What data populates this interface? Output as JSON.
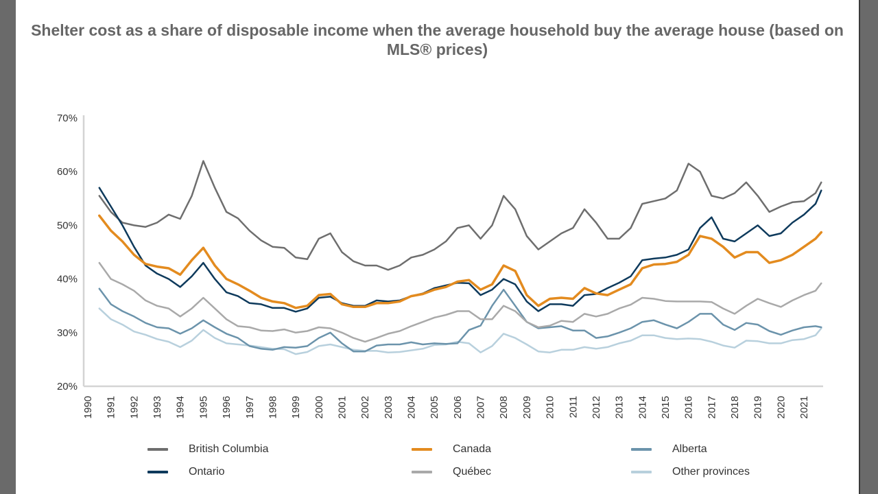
{
  "chart_data": {
    "type": "line",
    "title": "Shelter cost as a share of disposable income when the average household buy the average house (based on MLS® prices)",
    "xlabel": "",
    "ylabel": "",
    "ylim": [
      20,
      70
    ],
    "y_ticks": [
      "20%",
      "30%",
      "40%",
      "50%",
      "60%",
      "70%"
    ],
    "y_tick_values": [
      20,
      30,
      40,
      50,
      60,
      70
    ],
    "x_ticks": [
      "1990",
      "1991",
      "1992",
      "1993",
      "1994",
      "1995",
      "1996",
      "1997",
      "1998",
      "1999",
      "2000",
      "2001",
      "2002",
      "2003",
      "2004",
      "2005",
      "2006",
      "2007",
      "2008",
      "2009",
      "2010",
      "2011",
      "2012",
      "2013",
      "2014",
      "2015",
      "2016",
      "2017",
      "2018",
      "2019",
      "2020",
      "2021"
    ],
    "grid": false,
    "legend_position": "bottom",
    "x": [
      1990.5,
      1991,
      1991.5,
      1992,
      1992.5,
      1993,
      1993.5,
      1994,
      1994.5,
      1995,
      1995.5,
      1996,
      1996.5,
      1997,
      1997.5,
      1998,
      1998.5,
      1999,
      1999.5,
      2000,
      2000.5,
      2001,
      2001.5,
      2002,
      2002.5,
      2003,
      2003.5,
      2004,
      2004.5,
      2005,
      2005.5,
      2006,
      2006.5,
      2007,
      2007.5,
      2008,
      2008.5,
      2009,
      2009.5,
      2010,
      2010.5,
      2011,
      2011.5,
      2012,
      2012.5,
      2013,
      2013.5,
      2014,
      2014.5,
      2015,
      2015.5,
      2016,
      2016.5,
      2017,
      2017.5,
      2018,
      2018.5,
      2019,
      2019.5,
      2020,
      2020.5,
      2021,
      2021.5,
      2021.75
    ],
    "series": [
      {
        "name": "Other provinces",
        "color": "#b8d0dd",
        "width": 2.5,
        "values": [
          34.5,
          32.5,
          31.5,
          30.2,
          29.6,
          28.8,
          28.3,
          27.3,
          28.5,
          30.5,
          29.0,
          28.0,
          27.8,
          27.6,
          27.3,
          27.0,
          26.9,
          26.0,
          26.4,
          27.5,
          27.8,
          27.3,
          26.8,
          26.6,
          26.6,
          26.3,
          26.4,
          26.7,
          27.0,
          27.7,
          27.8,
          28.3,
          28.0,
          26.3,
          27.5,
          29.8,
          29.0,
          27.8,
          26.5,
          26.3,
          26.8,
          26.8,
          27.3,
          27.0,
          27.3,
          28.0,
          28.5,
          29.5,
          29.5,
          29.0,
          28.8,
          28.9,
          28.8,
          28.3,
          27.6,
          27.2,
          28.5,
          28.4,
          28.0,
          28.0,
          28.6,
          28.8,
          29.5,
          30.8
        ]
      },
      {
        "name": "Alberta",
        "color": "#6b93ab",
        "width": 2.5,
        "values": [
          38.2,
          35.3,
          34.0,
          33.0,
          31.8,
          31.0,
          30.8,
          29.8,
          30.8,
          32.3,
          31.0,
          29.8,
          29.0,
          27.5,
          27.0,
          26.8,
          27.3,
          27.2,
          27.5,
          29.0,
          30.0,
          28.0,
          26.5,
          26.5,
          27.6,
          27.8,
          27.8,
          28.2,
          27.8,
          28.0,
          27.9,
          28.0,
          30.5,
          31.3,
          35.0,
          38.0,
          35.0,
          32.0,
          30.8,
          31.0,
          31.2,
          30.4,
          30.4,
          29.0,
          29.3,
          30.0,
          30.8,
          32.0,
          32.3,
          31.5,
          30.8,
          32.0,
          33.5,
          33.5,
          31.5,
          30.5,
          31.8,
          31.5,
          30.3,
          29.6,
          30.4,
          31.0,
          31.2,
          31.0
        ]
      },
      {
        "name": "Québec",
        "color": "#a9a9a9",
        "width": 2.5,
        "values": [
          43.0,
          40.0,
          39.0,
          37.8,
          36.0,
          35.0,
          34.5,
          33.0,
          34.5,
          36.5,
          34.5,
          32.5,
          31.2,
          31.0,
          30.4,
          30.3,
          30.6,
          30.0,
          30.3,
          31.0,
          30.8,
          30.0,
          29.0,
          28.3,
          29.0,
          29.8,
          30.3,
          31.2,
          32.0,
          32.8,
          33.3,
          34.0,
          34.0,
          32.5,
          32.5,
          35.0,
          34.0,
          32.0,
          31.0,
          31.3,
          32.2,
          32.0,
          33.5,
          33.0,
          33.5,
          34.5,
          35.2,
          36.5,
          36.3,
          35.9,
          35.8,
          35.8,
          35.8,
          35.7,
          34.5,
          33.5,
          35.0,
          36.3,
          35.5,
          34.8,
          36.0,
          37.0,
          37.8,
          39.2
        ]
      },
      {
        "name": "British Columbia",
        "color": "#6e6e6e",
        "width": 2.5,
        "values": [
          55.5,
          52.5,
          50.5,
          50.0,
          49.7,
          50.5,
          52.0,
          51.2,
          55.5,
          62.0,
          57.0,
          52.5,
          51.3,
          49.0,
          47.2,
          46.0,
          45.8,
          44.0,
          43.7,
          47.5,
          48.5,
          45.0,
          43.3,
          42.5,
          42.5,
          41.7,
          42.5,
          44.0,
          44.5,
          45.5,
          47.0,
          49.5,
          50.0,
          47.5,
          50.0,
          55.5,
          53.0,
          48.0,
          45.5,
          47.0,
          48.5,
          49.5,
          53.0,
          50.5,
          47.5,
          47.5,
          49.5,
          54.0,
          54.5,
          55.0,
          56.5,
          61.5,
          60.0,
          55.5,
          55.0,
          56.0,
          58.0,
          55.5,
          52.5,
          53.5,
          54.3,
          54.5,
          56.0,
          58.0
        ]
      },
      {
        "name": "Ontario",
        "color": "#0e3a5c",
        "width": 2.5,
        "values": [
          57.0,
          53.5,
          50.0,
          46.0,
          42.5,
          41.0,
          40.0,
          38.5,
          40.5,
          43.0,
          40.0,
          37.5,
          36.8,
          35.5,
          35.3,
          34.6,
          34.6,
          33.9,
          34.5,
          36.5,
          36.7,
          35.5,
          35.0,
          35.0,
          36.0,
          35.8,
          36.0,
          36.8,
          37.3,
          38.3,
          38.8,
          39.3,
          39.2,
          37.0,
          38.0,
          40.0,
          39.0,
          35.8,
          34.0,
          35.3,
          35.3,
          35.0,
          37.0,
          37.2,
          38.3,
          39.3,
          40.5,
          43.5,
          43.8,
          44.0,
          44.5,
          45.5,
          49.5,
          51.5,
          47.5,
          47.0,
          48.5,
          50.0,
          48.0,
          48.5,
          50.5,
          52.0,
          54.0,
          56.5
        ]
      },
      {
        "name": "Canada",
        "color": "#e38b1f",
        "width": 3.5,
        "values": [
          51.8,
          49.0,
          47.0,
          44.5,
          42.8,
          42.3,
          42.0,
          40.8,
          43.5,
          45.8,
          42.5,
          40.0,
          39.0,
          37.8,
          36.5,
          35.8,
          35.5,
          34.6,
          35.0,
          37.0,
          37.2,
          35.3,
          34.8,
          34.8,
          35.5,
          35.5,
          35.8,
          36.8,
          37.2,
          38.0,
          38.5,
          39.5,
          39.8,
          38.0,
          39.0,
          42.5,
          41.5,
          37.0,
          35.0,
          36.3,
          36.5,
          36.3,
          38.3,
          37.3,
          37.0,
          38.0,
          39.0,
          42.0,
          42.7,
          42.8,
          43.2,
          44.5,
          48.0,
          47.5,
          46.0,
          44.0,
          45.0,
          45.0,
          43.0,
          43.5,
          44.5,
          46.0,
          47.5,
          48.7
        ]
      }
    ],
    "legend": [
      {
        "label": "British Columbia",
        "color": "#6e6e6e"
      },
      {
        "label": "Canada",
        "color": "#e38b1f"
      },
      {
        "label": "Alberta",
        "color": "#6b93ab"
      },
      {
        "label": "Ontario",
        "color": "#0e3a5c"
      },
      {
        "label": "Québec",
        "color": "#a9a9a9"
      },
      {
        "label": "Other provinces",
        "color": "#b8d0dd"
      }
    ]
  }
}
